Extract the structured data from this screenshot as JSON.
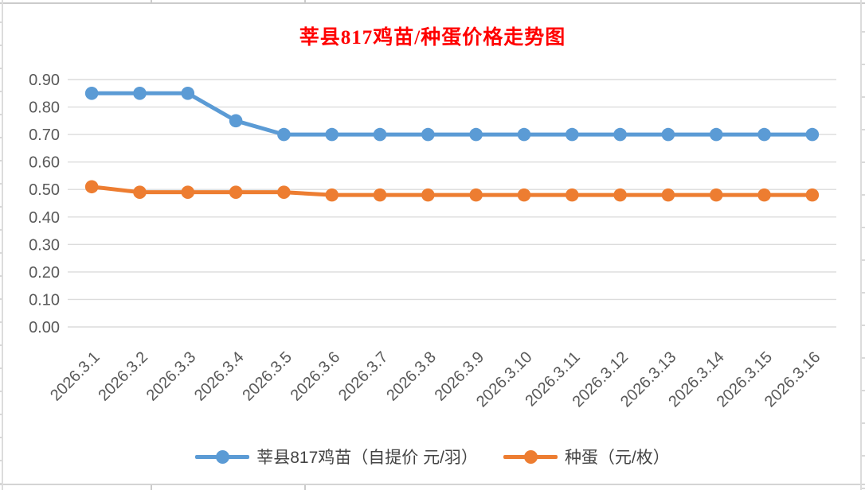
{
  "title": {
    "text": "莘县817鸡苗/种蛋价格走势图",
    "color": "#FF0000"
  },
  "chart_data": {
    "type": "line",
    "title": "莘县817鸡苗/种蛋价格走势图",
    "categories": [
      "2026.3.1",
      "2026.3.2",
      "2026.3.3",
      "2026.3.4",
      "2026.3.5",
      "2026.3.6",
      "2026.3.7",
      "2026.3.8",
      "2026.3.9",
      "2026.3.10",
      "2026.3.11",
      "2026.3.12",
      "2026.3.13",
      "2026.3.14",
      "2026.3.15",
      "2026.3.16"
    ],
    "series": [
      {
        "name": "莘县817鸡苗（自提价 元/羽）",
        "color": "#5B9BD5",
        "values": [
          0.85,
          0.85,
          0.85,
          0.75,
          0.7,
          0.7,
          0.7,
          0.7,
          0.7,
          0.7,
          0.7,
          0.7,
          0.7,
          0.7,
          0.7,
          0.7
        ]
      },
      {
        "name": "种蛋（元/枚）",
        "color": "#ED7D31",
        "values": [
          0.51,
          0.49,
          0.49,
          0.49,
          0.49,
          0.48,
          0.48,
          0.48,
          0.48,
          0.48,
          0.48,
          0.48,
          0.48,
          0.48,
          0.48,
          0.48
        ]
      }
    ],
    "xlabel": "",
    "ylabel": "",
    "ylim": [
      0.0,
      0.9
    ],
    "ytick_step": 0.1,
    "ytick_labels": [
      "0.00",
      "0.10",
      "0.20",
      "0.30",
      "0.40",
      "0.50",
      "0.60",
      "0.70",
      "0.80",
      "0.90"
    ],
    "grid": true,
    "gridline_color": "#DCDCDC",
    "axis_text_color": "#595959",
    "legend_position": "bottom"
  }
}
